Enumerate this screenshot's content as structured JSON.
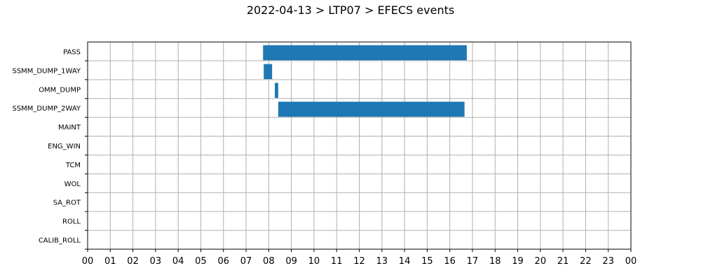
{
  "chart_data": {
    "type": "bar",
    "orientation": "horizontal-timeline",
    "title": "2022-04-13 > LTP07 > EFECS events",
    "xlabel": "",
    "ylabel": "",
    "xlim_hours": [
      0,
      24
    ],
    "x_ticks": [
      "00",
      "01",
      "02",
      "03",
      "04",
      "05",
      "06",
      "07",
      "08",
      "09",
      "10",
      "11",
      "12",
      "13",
      "14",
      "15",
      "16",
      "17",
      "18",
      "19",
      "20",
      "21",
      "22",
      "23",
      "00"
    ],
    "categories": [
      "PASS",
      "SSMM_DUMP_1WAY",
      "OMM_DUMP",
      "SSMM_DUMP_2WAY",
      "MAINT",
      "ENG_WIN",
      "TCM",
      "WOL",
      "SA_ROT",
      "ROLL",
      "CALIB_ROLL"
    ],
    "events": [
      {
        "category": "PASS",
        "start": 7.75,
        "end": 16.75
      },
      {
        "category": "SSMM_DUMP_1WAY",
        "start": 7.78,
        "end": 8.15
      },
      {
        "category": "OMM_DUMP",
        "start": 8.27,
        "end": 8.42
      },
      {
        "category": "SSMM_DUMP_2WAY",
        "start": 8.42,
        "end": 16.65
      }
    ],
    "grid": true,
    "bar_color": "#1f77b4"
  }
}
